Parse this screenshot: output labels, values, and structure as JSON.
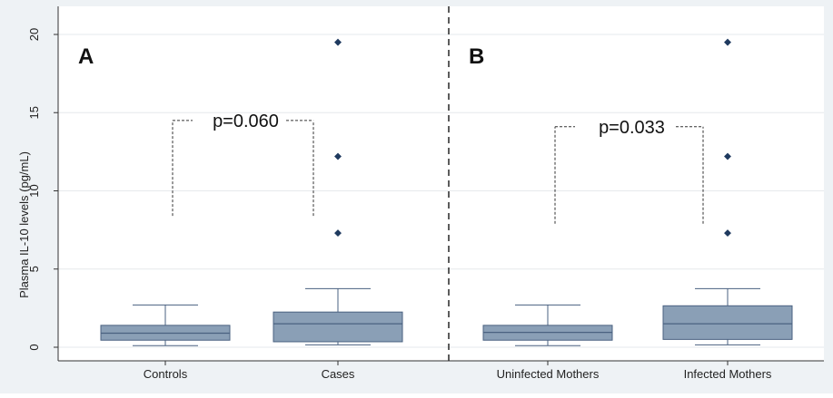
{
  "chart_data": {
    "type": "boxplot",
    "ylabel": "Plasma IL-10 levels (pg/mL)",
    "ylim": [
      0,
      20
    ],
    "yticks": [
      0,
      5,
      10,
      15,
      20
    ],
    "grid": true,
    "colors": {
      "box_fill": "#8a9fb6",
      "box_stroke": "#4a6180",
      "outlier": "#1f3a5f",
      "background": "#eef2f5",
      "plot_bg": "#ffffff",
      "divider": "#333333"
    },
    "panels": [
      {
        "label": "A",
        "p_value": "p=0.060",
        "p_bracket_y": 14.5,
        "p_bracket_bottom": 8.4,
        "groups": [
          {
            "name": "Controls",
            "whisker_low": 0.1,
            "q1": 0.45,
            "median": 0.9,
            "q3": 1.4,
            "whisker_high": 2.7,
            "outliers": []
          },
          {
            "name": "Cases",
            "whisker_low": 0.15,
            "q1": 0.35,
            "median": 1.5,
            "q3": 2.25,
            "whisker_high": 3.75,
            "outliers": [
              7.3,
              12.2,
              19.5
            ]
          }
        ]
      },
      {
        "label": "B",
        "p_value": "p=0.033",
        "p_bracket_y": 14.1,
        "p_bracket_bottom": 7.9,
        "groups": [
          {
            "name": "Uninfected Mothers",
            "whisker_low": 0.1,
            "q1": 0.45,
            "median": 0.95,
            "q3": 1.4,
            "whisker_high": 2.7,
            "outliers": []
          },
          {
            "name": "Infected Mothers",
            "whisker_low": 0.15,
            "q1": 0.5,
            "median": 1.5,
            "q3": 2.65,
            "whisker_high": 3.75,
            "outliers": [
              7.3,
              12.2,
              19.5
            ]
          }
        ]
      }
    ]
  }
}
